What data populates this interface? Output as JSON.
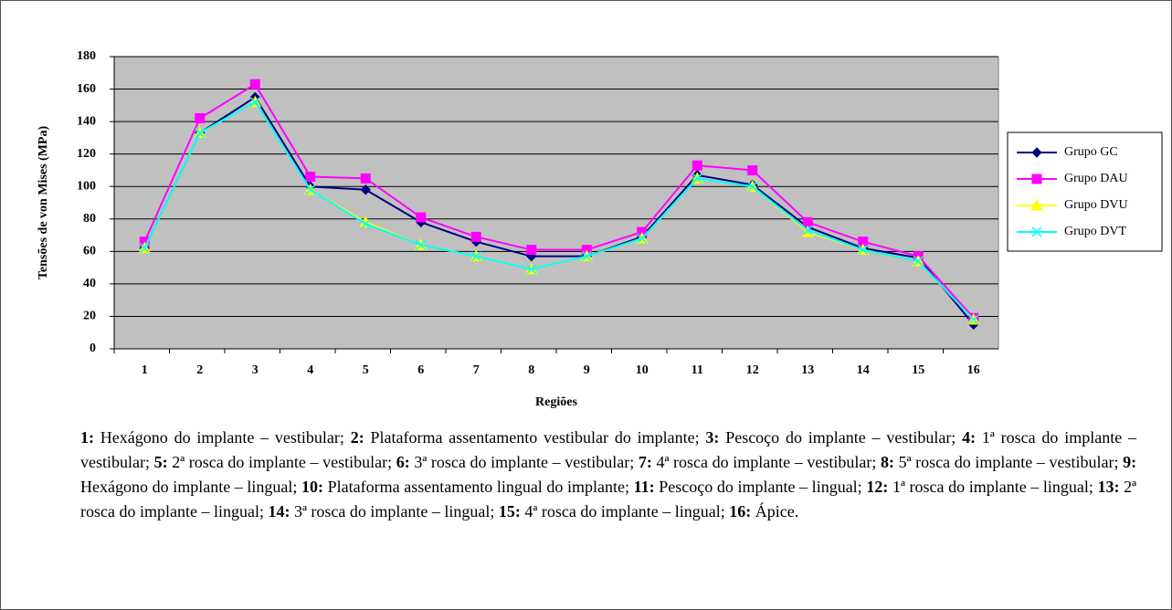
{
  "chart_data": {
    "type": "line",
    "y_label": "Tensões de von Mises (MPa)",
    "x_label": "Regiões",
    "categories": [
      "1",
      "2",
      "3",
      "4",
      "5",
      "6",
      "7",
      "8",
      "9",
      "10",
      "11",
      "12",
      "13",
      "14",
      "15",
      "16"
    ],
    "ylim": [
      0,
      180
    ],
    "yticks": [
      0,
      20,
      40,
      60,
      80,
      100,
      120,
      140,
      160,
      180
    ],
    "grid": true,
    "legend": "right",
    "series": [
      {
        "name": "Grupo GC",
        "color": "#000080",
        "marker": "diamond",
        "values": [
          62,
          133,
          155,
          100,
          98,
          78,
          66,
          57,
          57,
          69,
          107,
          101,
          75,
          62,
          56,
          15
        ]
      },
      {
        "name": "Grupo DAU",
        "color": "#ff00ff",
        "marker": "square",
        "values": [
          66,
          142,
          163,
          106,
          105,
          81,
          69,
          61,
          61,
          72,
          113,
          110,
          78,
          66,
          57,
          19
        ]
      },
      {
        "name": "Grupo DVU",
        "color": "#ffff00",
        "marker": "triangle",
        "values": [
          62,
          133,
          152,
          98,
          78,
          64,
          57,
          49,
          57,
          68,
          105,
          100,
          72,
          61,
          54,
          18
        ]
      },
      {
        "name": "Grupo DVT",
        "color": "#00ffff",
        "marker": "x",
        "values": [
          62,
          133,
          152,
          98,
          77,
          64,
          57,
          49,
          57,
          68,
          105,
          100,
          73,
          61,
          54,
          18
        ]
      }
    ]
  },
  "caption": [
    {
      "key": "1:",
      "text": "Hexágono do implante – vestibular;"
    },
    {
      "key": "2:",
      "text": "Plataforma assentamento vestibular do implante;"
    },
    {
      "key": "3:",
      "text": "Pescoço do implante – vestibular;"
    },
    {
      "key": "4:",
      "text": "1ª rosca do implante – vestibular;"
    },
    {
      "key": "5:",
      "text": "2ª rosca do implante – vestibular;"
    },
    {
      "key": "6:",
      "text": "3ª rosca do implante – vestibular;"
    },
    {
      "key": "7:",
      "text": "4ª rosca do implante – vestibular;"
    },
    {
      "key": "8:",
      "text": "5ª rosca do implante – vestibular;"
    },
    {
      "key": "9:",
      "text": "Hexágono do implante – lingual;"
    },
    {
      "key": "10:",
      "text": "Plataforma assentamento lingual do implante;"
    },
    {
      "key": "11:",
      "text": "Pescoço do implante – lingual;"
    },
    {
      "key": "12:",
      "text": "1ª rosca do implante – lingual;"
    },
    {
      "key": "13:",
      "text": "2ª rosca do implante – lingual;"
    },
    {
      "key": "14:",
      "text": "3ª rosca do implante – lingual;"
    },
    {
      "key": "15:",
      "text": "4ª rosca do implante – lingual;"
    },
    {
      "key": "16:",
      "text": "Ápice."
    }
  ]
}
